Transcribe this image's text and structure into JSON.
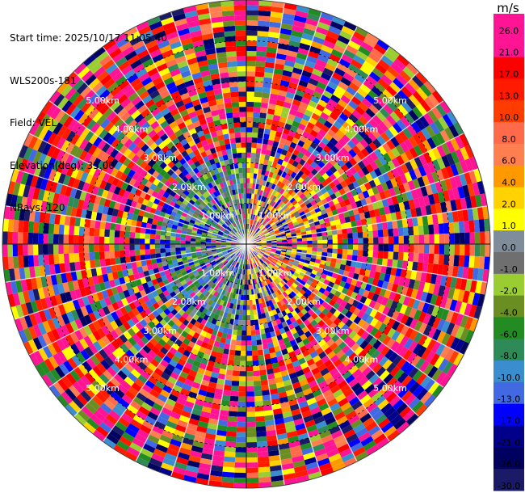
{
  "header": {
    "start_time": "Start time: 2025/10/17 11:05:40",
    "station": "WLS200s-181",
    "field": "Field: VEL",
    "elevation": "Elevation(deg): 35.00",
    "nrays": "NRays: 120"
  },
  "chart_data": {
    "type": "heatmap",
    "projection": "polar PPI",
    "field": "VEL",
    "elevation_deg": 35.0,
    "n_rays": 120,
    "max_range_km": 6.0,
    "range_rings_km": [
      1,
      2,
      3,
      4,
      5,
      6
    ],
    "ring_labels": [
      "1.00km",
      "2.00km",
      "3.00km",
      "4.00km",
      "5.00km"
    ],
    "colorbar": {
      "unit": "m/s",
      "ticks": [
        "26.0",
        "21.0",
        "17.0",
        "13.0",
        "10.0",
        "8.0",
        "6.0",
        "4.0",
        "2.0",
        "1.0",
        "0.0",
        "-1.0",
        "-2.0",
        "-4.0",
        "-6.0",
        "-8.0",
        "-10.0",
        "-13.0",
        "-17.0",
        "-21.0",
        "-26.0",
        "-30.0"
      ],
      "colors": [
        "#ff1493",
        "#ff1493",
        "#ff0000",
        "#ff1a00",
        "#ff3c00",
        "#ff6a4a",
        "#ff7f50",
        "#ff9900",
        "#ffd200",
        "#ffff00",
        "#7f8c99",
        "#6f6f6f",
        "#9acd32",
        "#6b8e23",
        "#228b22",
        "#2e8b57",
        "#3a8ecf",
        "#4169e1",
        "#0000ff",
        "#00008b",
        "#000060",
        "#1a1a66"
      ]
    }
  }
}
